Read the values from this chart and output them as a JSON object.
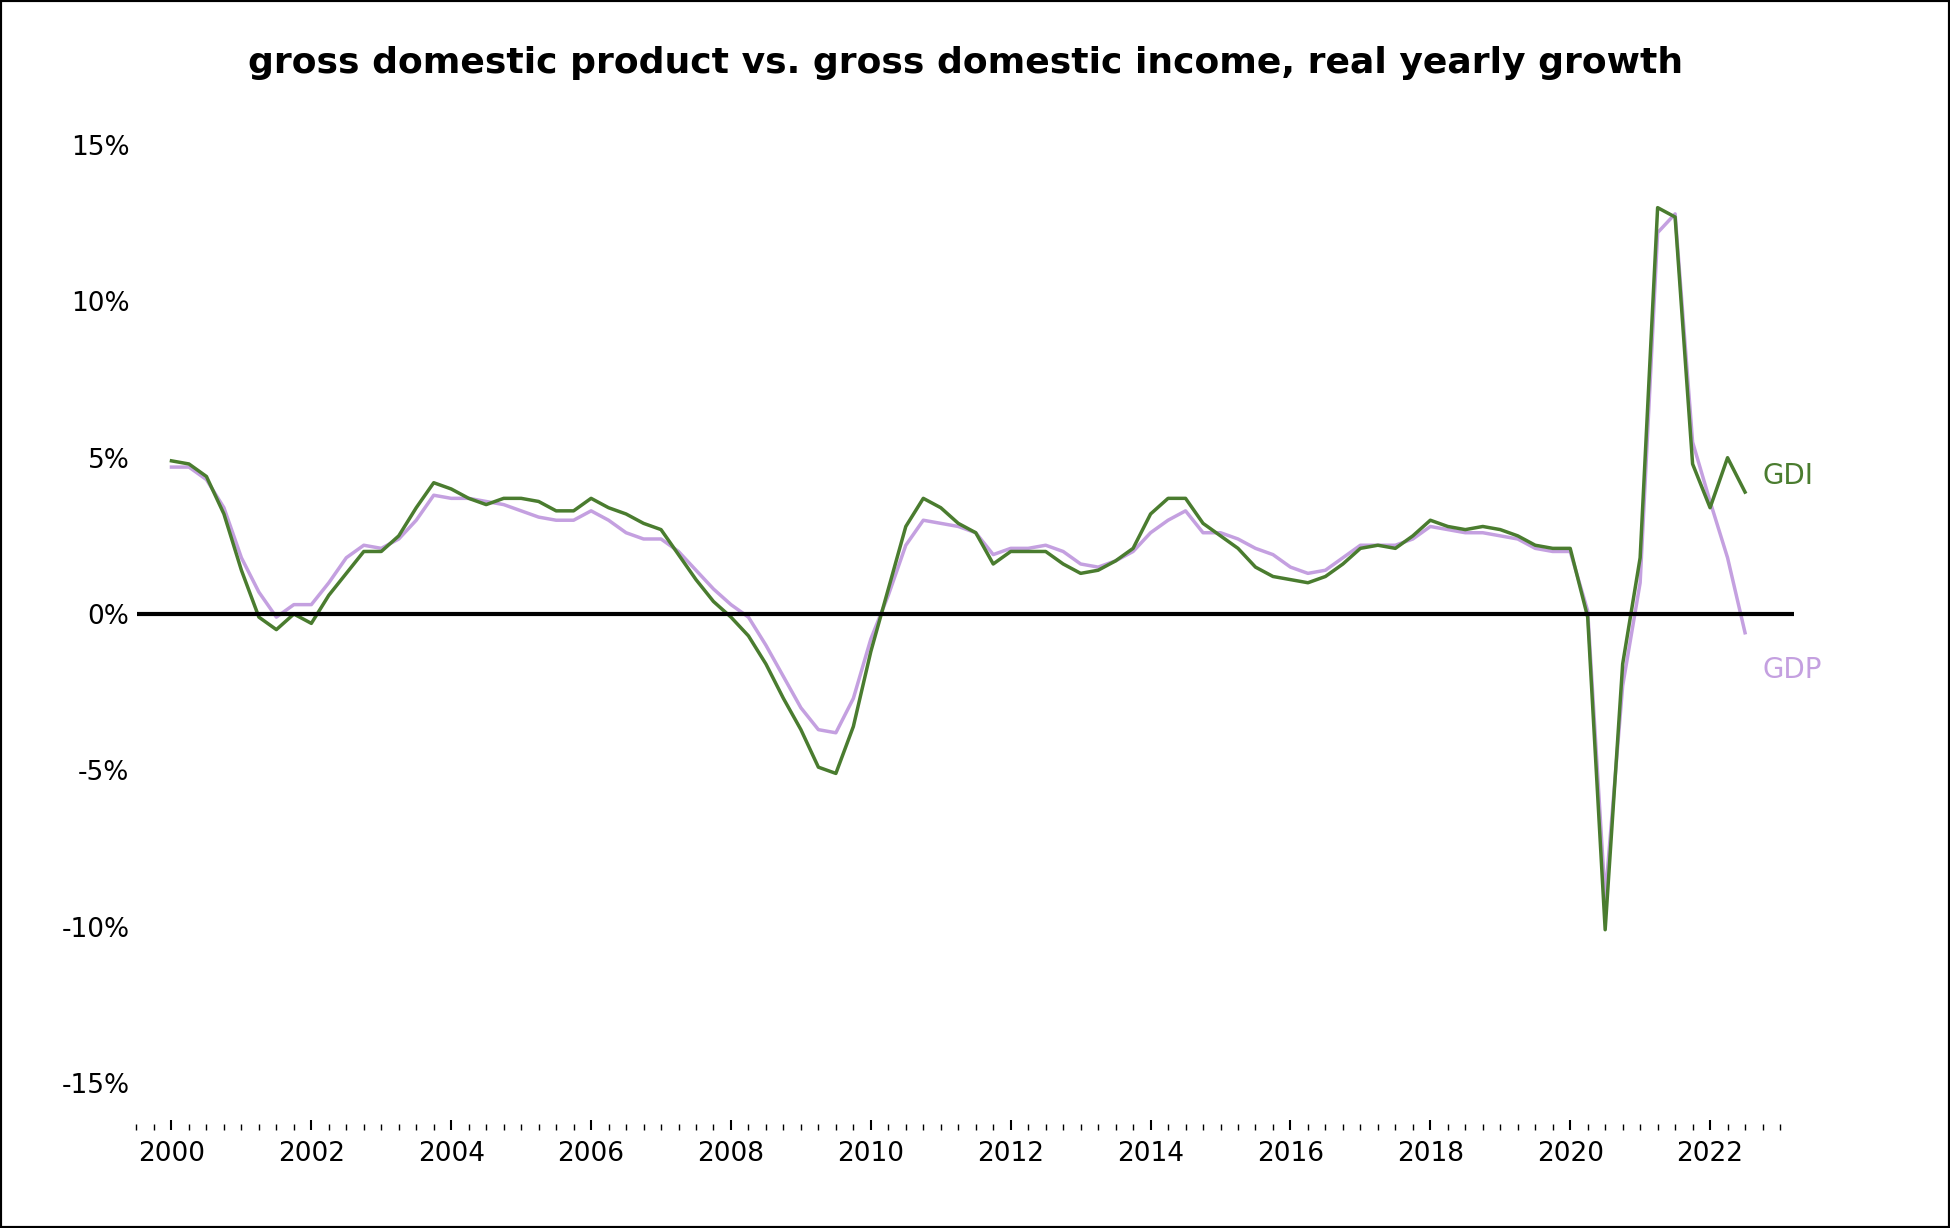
{
  "title": "gross domestic product vs. gross domestic income, real yearly growth",
  "gdi_color": "#4a7c2f",
  "gdp_color": "#c4a0e0",
  "background_color": "#ffffff",
  "border_color": "#000000",
  "zero_line_color": "#000000",
  "title_fontsize": 26,
  "tick_fontsize": 19,
  "legend_fontsize": 20,
  "ylim": [
    -0.165,
    0.165
  ],
  "yticks": [
    -0.15,
    -0.1,
    -0.05,
    0.0,
    0.05,
    0.1,
    0.15
  ],
  "xlim": [
    1999.5,
    2023.2
  ],
  "xticks": [
    2000,
    2002,
    2004,
    2006,
    2008,
    2010,
    2012,
    2014,
    2016,
    2018,
    2020,
    2022
  ],
  "years": [
    2000.0,
    2000.25,
    2000.5,
    2000.75,
    2001.0,
    2001.25,
    2001.5,
    2001.75,
    2002.0,
    2002.25,
    2002.5,
    2002.75,
    2003.0,
    2003.25,
    2003.5,
    2003.75,
    2004.0,
    2004.25,
    2004.5,
    2004.75,
    2005.0,
    2005.25,
    2005.5,
    2005.75,
    2006.0,
    2006.25,
    2006.5,
    2006.75,
    2007.0,
    2007.25,
    2007.5,
    2007.75,
    2008.0,
    2008.25,
    2008.5,
    2008.75,
    2009.0,
    2009.25,
    2009.5,
    2009.75,
    2010.0,
    2010.25,
    2010.5,
    2010.75,
    2011.0,
    2011.25,
    2011.5,
    2011.75,
    2012.0,
    2012.25,
    2012.5,
    2012.75,
    2013.0,
    2013.25,
    2013.5,
    2013.75,
    2014.0,
    2014.25,
    2014.5,
    2014.75,
    2015.0,
    2015.25,
    2015.5,
    2015.75,
    2016.0,
    2016.25,
    2016.5,
    2016.75,
    2017.0,
    2017.25,
    2017.5,
    2017.75,
    2018.0,
    2018.25,
    2018.5,
    2018.75,
    2019.0,
    2019.25,
    2019.5,
    2019.75,
    2020.0,
    2020.25,
    2020.5,
    2020.75,
    2021.0,
    2021.25,
    2021.5,
    2021.75,
    2022.0,
    2022.25,
    2022.5
  ],
  "gdp": [
    0.047,
    0.047,
    0.043,
    0.034,
    0.018,
    0.007,
    -0.001,
    0.003,
    0.003,
    0.01,
    0.018,
    0.022,
    0.021,
    0.024,
    0.03,
    0.038,
    0.037,
    0.037,
    0.036,
    0.035,
    0.033,
    0.031,
    0.03,
    0.03,
    0.033,
    0.03,
    0.026,
    0.024,
    0.024,
    0.02,
    0.014,
    0.008,
    0.003,
    -0.001,
    -0.01,
    -0.02,
    -0.03,
    -0.037,
    -0.038,
    -0.027,
    -0.008,
    0.006,
    0.022,
    0.03,
    0.029,
    0.028,
    0.026,
    0.019,
    0.021,
    0.021,
    0.022,
    0.02,
    0.016,
    0.015,
    0.017,
    0.02,
    0.026,
    0.03,
    0.033,
    0.026,
    0.026,
    0.024,
    0.021,
    0.019,
    0.015,
    0.013,
    0.014,
    0.018,
    0.022,
    0.022,
    0.022,
    0.024,
    0.028,
    0.027,
    0.026,
    0.026,
    0.025,
    0.024,
    0.021,
    0.02,
    0.02,
    0.001,
    -0.091,
    -0.023,
    0.01,
    0.122,
    0.128,
    0.055,
    0.036,
    0.018,
    -0.006
  ],
  "gdi": [
    0.049,
    0.048,
    0.044,
    0.032,
    0.014,
    -0.001,
    -0.005,
    0.0,
    -0.003,
    0.006,
    0.013,
    0.02,
    0.02,
    0.025,
    0.034,
    0.042,
    0.04,
    0.037,
    0.035,
    0.037,
    0.037,
    0.036,
    0.033,
    0.033,
    0.037,
    0.034,
    0.032,
    0.029,
    0.027,
    0.019,
    0.011,
    0.004,
    -0.001,
    -0.007,
    -0.016,
    -0.027,
    -0.037,
    -0.049,
    -0.051,
    -0.036,
    -0.012,
    0.008,
    0.028,
    0.037,
    0.034,
    0.029,
    0.026,
    0.016,
    0.02,
    0.02,
    0.02,
    0.016,
    0.013,
    0.014,
    0.017,
    0.021,
    0.032,
    0.037,
    0.037,
    0.029,
    0.025,
    0.021,
    0.015,
    0.012,
    0.011,
    0.01,
    0.012,
    0.016,
    0.021,
    0.022,
    0.021,
    0.025,
    0.03,
    0.028,
    0.027,
    0.028,
    0.027,
    0.025,
    0.022,
    0.021,
    0.021,
    -0.001,
    -0.101,
    -0.016,
    0.018,
    0.13,
    0.127,
    0.048,
    0.034,
    0.05,
    0.039
  ]
}
